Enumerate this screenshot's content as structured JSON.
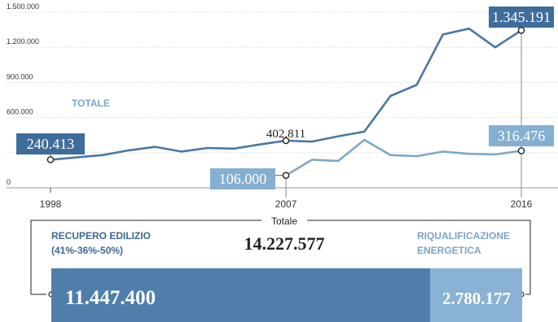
{
  "colors": {
    "totale": "#4a77a3",
    "totale_box": "#3f6d9b",
    "energ": "#7ea8ca",
    "energ_box": "#85afd1",
    "grid": "#d0d0d0",
    "bar_left": "#4f7eab",
    "bar_right": "#8ab2d4",
    "text_blue_dark": "#3a6898",
    "text_blue_light": "#7aa5c8"
  },
  "chart_data": {
    "type": "line",
    "x": [
      1998,
      1999,
      2000,
      2001,
      2002,
      2003,
      2004,
      2005,
      2006,
      2007,
      2008,
      2009,
      2010,
      2011,
      2012,
      2013,
      2014,
      2015,
      2016
    ],
    "ylim": [
      0,
      1500000
    ],
    "yticks": [
      {
        "value": 0,
        "label": "0"
      },
      {
        "value": 300000,
        "label": ""
      },
      {
        "value": 600000,
        "label": "600.000"
      },
      {
        "value": 900000,
        "label": "900.000"
      },
      {
        "value": 1200000,
        "label": "1.200.000"
      },
      {
        "value": 1500000,
        "label": "1.500.000"
      }
    ],
    "xticks": [
      1998,
      2007,
      2016
    ],
    "series": [
      {
        "name": "TOTALE",
        "key": "totale",
        "values": [
          240413,
          260000,
          280000,
          320000,
          350000,
          310000,
          340000,
          335000,
          370000,
          402811,
          395000,
          440000,
          480000,
          785000,
          880000,
          1310000,
          1360000,
          1200000,
          1345191
        ]
      },
      {
        "name": "",
        "key": "energ",
        "values": [
          null,
          null,
          null,
          null,
          null,
          null,
          null,
          null,
          null,
          106000,
          240000,
          230000,
          410000,
          280000,
          270000,
          310000,
          290000,
          285000,
          316476
        ]
      }
    ],
    "callouts": [
      {
        "text": "240.413",
        "series": 0,
        "index": 0,
        "style": "box"
      },
      {
        "text": "402.811",
        "series": 0,
        "index": 9,
        "style": "plain"
      },
      {
        "text": "1.345.191",
        "series": 0,
        "index": 18,
        "style": "box"
      },
      {
        "text": "106.000",
        "series": 1,
        "index": 0,
        "style": "box-light"
      },
      {
        "text": "316.476",
        "series": 1,
        "index": 18,
        "style": "box-light"
      }
    ],
    "series_label": "TOTALE"
  },
  "totals": {
    "header": "Totale",
    "total_value": "14.227.577",
    "left_label_1": "RECUPERO EDILIZIO",
    "left_label_2": "(41%-36%-50%)",
    "right_label_1": "RIQUALIFICAZIONE",
    "right_label_2": "ENERGETICA",
    "left_value": "11.447.400",
    "right_value": "2.780.177"
  }
}
